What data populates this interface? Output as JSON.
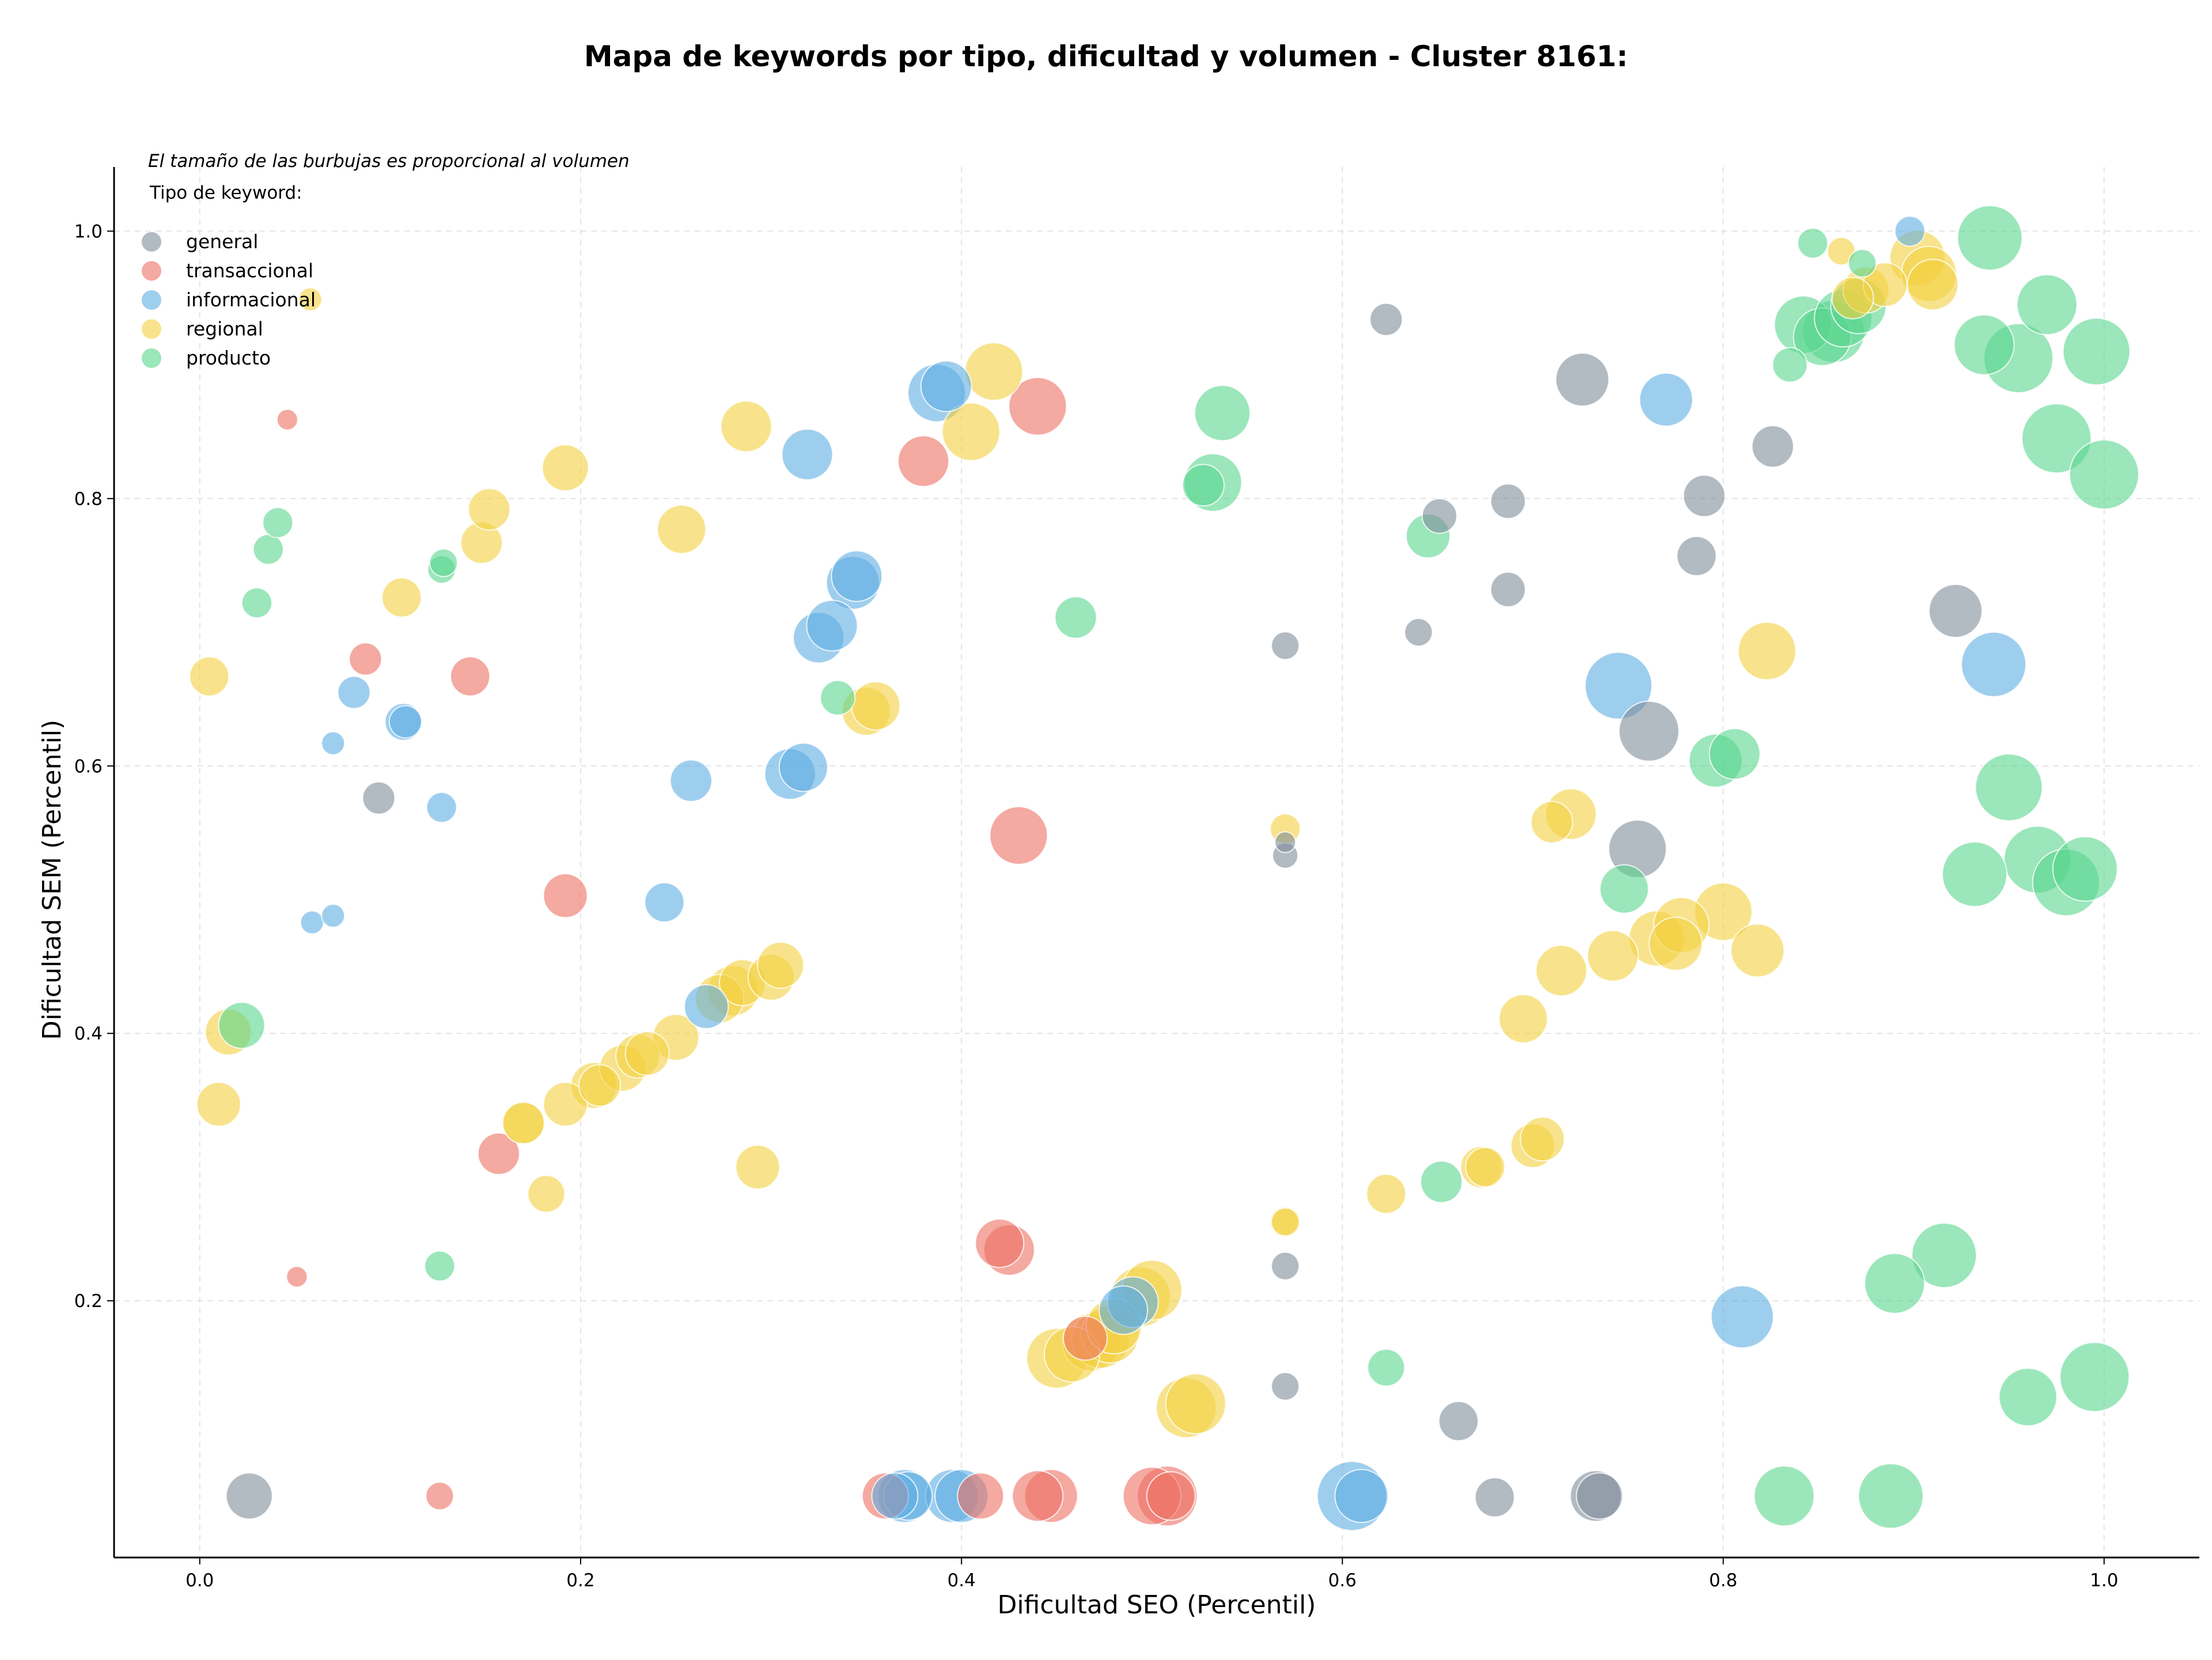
{
  "chart_data": {
    "type": "scatter",
    "title": "Mapa de keywords por tipo, dificultad y volumen - Cluster 8161:",
    "xlabel": "Dificultad SEO (Percentil)",
    "ylabel": "Dificultad SEM (Percentil)",
    "xlim": [
      -0.045,
      1.05
    ],
    "ylim": [
      0.008,
      1.048
    ],
    "xticks": [
      "0.0",
      "0.2",
      "0.4",
      "0.6",
      "0.8",
      "1.0"
    ],
    "xtick_values": [
      0.0,
      0.2,
      0.4,
      0.6,
      0.8,
      1.0
    ],
    "yticks": [
      "0.2",
      "0.4",
      "0.6",
      "0.8",
      "1.0"
    ],
    "ytick_values": [
      0.2,
      0.4,
      0.6,
      0.8,
      1.0
    ],
    "grid": true,
    "note": "El tamaño de las burbujas es proporcional al volumen",
    "legend_title": "Tipo de keyword:",
    "legend_position": "top-left",
    "series": [
      {
        "name": "general",
        "color": "#7f8c9a",
        "points": [
          [
            0.026,
            0.054,
            40
          ],
          [
            0.094,
            0.576,
            28
          ],
          [
            0.57,
            0.69,
            24
          ],
          [
            0.57,
            0.543,
            18
          ],
          [
            0.57,
            0.533,
            22
          ],
          [
            0.57,
            0.226,
            24
          ],
          [
            0.57,
            0.136,
            24
          ],
          [
            0.623,
            0.934,
            28
          ],
          [
            0.64,
            0.7,
            24
          ],
          [
            0.651,
            0.787,
            30
          ],
          [
            0.68,
            0.053,
            34
          ],
          [
            0.661,
            0.11,
            34
          ],
          [
            0.687,
            0.798,
            30
          ],
          [
            0.687,
            0.732,
            30
          ],
          [
            0.726,
            0.889,
            46
          ],
          [
            0.733,
            0.054,
            44
          ],
          [
            0.735,
            0.054,
            40
          ],
          [
            0.755,
            0.538,
            50
          ],
          [
            0.761,
            0.626,
            52
          ],
          [
            0.786,
            0.757,
            34
          ],
          [
            0.79,
            0.802,
            36
          ],
          [
            0.826,
            0.839,
            36
          ],
          [
            0.922,
            0.716,
            46
          ]
        ]
      },
      {
        "name": "transaccional",
        "color": "#ec7063",
        "points": [
          [
            0.046,
            0.859,
            18
          ],
          [
            0.051,
            0.218,
            18
          ],
          [
            0.087,
            0.68,
            28
          ],
          [
            0.126,
            0.054,
            24
          ],
          [
            0.142,
            0.667,
            34
          ],
          [
            0.157,
            0.31,
            36
          ],
          [
            0.192,
            0.503,
            38
          ],
          [
            0.36,
            0.054,
            40
          ],
          [
            0.38,
            0.828,
            44
          ],
          [
            0.41,
            0.054,
            40
          ],
          [
            0.42,
            0.243,
            42
          ],
          [
            0.425,
            0.238,
            44
          ],
          [
            0.43,
            0.548,
            50
          ],
          [
            0.44,
            0.054,
            44
          ],
          [
            0.447,
            0.054,
            46
          ],
          [
            0.44,
            0.869,
            50
          ],
          [
            0.465,
            0.172,
            38
          ],
          [
            0.5,
            0.054,
            50
          ],
          [
            0.508,
            0.054,
            52
          ],
          [
            0.51,
            0.054,
            42
          ]
        ]
      },
      {
        "name": "informacional",
        "color": "#5dade2",
        "points": [
          [
            0.059,
            0.483,
            20
          ],
          [
            0.07,
            0.488,
            20
          ],
          [
            0.07,
            0.617,
            20
          ],
          [
            0.081,
            0.655,
            28
          ],
          [
            0.107,
            0.633,
            32
          ],
          [
            0.108,
            0.633,
            28
          ],
          [
            0.127,
            0.569,
            26
          ],
          [
            0.244,
            0.498,
            34
          ],
          [
            0.258,
            0.589,
            36
          ],
          [
            0.266,
            0.42,
            38
          ],
          [
            0.31,
            0.594,
            44
          ],
          [
            0.317,
            0.599,
            42
          ],
          [
            0.319,
            0.833,
            44
          ],
          [
            0.325,
            0.696,
            44
          ],
          [
            0.332,
            0.705,
            44
          ],
          [
            0.343,
            0.737,
            46
          ],
          [
            0.345,
            0.742,
            44
          ],
          [
            0.365,
            0.054,
            40
          ],
          [
            0.37,
            0.054,
            46
          ],
          [
            0.372,
            0.054,
            42
          ],
          [
            0.387,
            0.879,
            50
          ],
          [
            0.392,
            0.884,
            44
          ],
          [
            0.395,
            0.054,
            46
          ],
          [
            0.4,
            0.054,
            46
          ],
          [
            0.485,
            0.193,
            42
          ],
          [
            0.49,
            0.199,
            44
          ],
          [
            0.605,
            0.054,
            60
          ],
          [
            0.61,
            0.054,
            46
          ],
          [
            0.77,
            0.874,
            46
          ],
          [
            0.745,
            0.66,
            58
          ],
          [
            0.81,
            0.188,
            54
          ],
          [
            0.898,
            1.0,
            26
          ],
          [
            0.942,
            0.676,
            56
          ]
        ]
      },
      {
        "name": "regional",
        "color": "#f4d03f",
        "points": [
          [
            0.005,
            0.667,
            34
          ],
          [
            0.01,
            0.347,
            38
          ],
          [
            0.015,
            0.401,
            40
          ],
          [
            0.058,
            0.949,
            20
          ],
          [
            0.106,
            0.726,
            34
          ],
          [
            0.148,
            0.767,
            36
          ],
          [
            0.152,
            0.792,
            36
          ],
          [
            0.17,
            0.333,
            36
          ],
          [
            0.17,
            0.333,
            36
          ],
          [
            0.182,
            0.28,
            32
          ],
          [
            0.192,
            0.347,
            38
          ],
          [
            0.192,
            0.823,
            40
          ],
          [
            0.207,
            0.361,
            40
          ],
          [
            0.21,
            0.361,
            36
          ],
          [
            0.222,
            0.374,
            40
          ],
          [
            0.23,
            0.383,
            38
          ],
          [
            0.235,
            0.385,
            38
          ],
          [
            0.25,
            0.397,
            40
          ],
          [
            0.253,
            0.777,
            42
          ],
          [
            0.273,
            0.426,
            42
          ],
          [
            0.28,
            0.432,
            44
          ],
          [
            0.285,
            0.438,
            40
          ],
          [
            0.287,
            0.854,
            44
          ],
          [
            0.293,
            0.3,
            38
          ],
          [
            0.3,
            0.442,
            40
          ],
          [
            0.305,
            0.451,
            40
          ],
          [
            0.35,
            0.641,
            42
          ],
          [
            0.355,
            0.645,
            42
          ],
          [
            0.405,
            0.85,
            50
          ],
          [
            0.417,
            0.895,
            50
          ],
          [
            0.45,
            0.157,
            52
          ],
          [
            0.458,
            0.16,
            48
          ],
          [
            0.468,
            0.169,
            50
          ],
          [
            0.473,
            0.171,
            50
          ],
          [
            0.478,
            0.175,
            50
          ],
          [
            0.48,
            0.181,
            48
          ],
          [
            0.494,
            0.203,
            52
          ],
          [
            0.5,
            0.208,
            52
          ],
          [
            0.518,
            0.12,
            52
          ],
          [
            0.523,
            0.123,
            52
          ],
          [
            0.57,
            0.553,
            26
          ],
          [
            0.57,
            0.259,
            26
          ],
          [
            0.57,
            0.259,
            24
          ],
          [
            0.623,
            0.28,
            34
          ],
          [
            0.673,
            0.3,
            36
          ],
          [
            0.675,
            0.3,
            34
          ],
          [
            0.695,
            0.411,
            42
          ],
          [
            0.7,
            0.316,
            38
          ],
          [
            0.705,
            0.321,
            38
          ],
          [
            0.71,
            0.558,
            36
          ],
          [
            0.715,
            0.447,
            44
          ],
          [
            0.72,
            0.564,
            44
          ],
          [
            0.742,
            0.458,
            44
          ],
          [
            0.765,
            0.471,
            48
          ],
          [
            0.775,
            0.467,
            46
          ],
          [
            0.778,
            0.481,
            48
          ],
          [
            0.8,
            0.491,
            50
          ],
          [
            0.818,
            0.462,
            46
          ],
          [
            0.823,
            0.686,
            50
          ],
          [
            0.862,
            0.985,
            24
          ],
          [
            0.868,
            0.95,
            36
          ],
          [
            0.875,
            0.956,
            40
          ],
          [
            0.885,
            0.96,
            38
          ],
          [
            0.902,
            0.98,
            48
          ],
          [
            0.908,
            0.968,
            48
          ],
          [
            0.91,
            0.96,
            44
          ]
        ]
      },
      {
        "name": "producto",
        "color": "#58d68d",
        "points": [
          [
            0.022,
            0.406,
            40
          ],
          [
            0.03,
            0.722,
            26
          ],
          [
            0.036,
            0.762,
            26
          ],
          [
            0.041,
            0.782,
            26
          ],
          [
            0.126,
            0.226,
            26
          ],
          [
            0.127,
            0.747,
            24
          ],
          [
            0.128,
            0.752,
            24
          ],
          [
            0.335,
            0.651,
            30
          ],
          [
            0.46,
            0.711,
            36
          ],
          [
            0.527,
            0.81,
            36
          ],
          [
            0.532,
            0.812,
            50
          ],
          [
            0.537,
            0.864,
            48
          ],
          [
            0.623,
            0.15,
            32
          ],
          [
            0.645,
            0.772,
            38
          ],
          [
            0.652,
            0.289,
            36
          ],
          [
            0.748,
            0.508,
            42
          ],
          [
            0.796,
            0.604,
            46
          ],
          [
            0.806,
            0.609,
            44
          ],
          [
            0.832,
            0.054,
            52
          ],
          [
            0.835,
            0.9,
            30
          ],
          [
            0.842,
            0.93,
            50
          ],
          [
            0.847,
            0.991,
            26
          ],
          [
            0.852,
            0.921,
            50
          ],
          [
            0.858,
            0.925,
            54
          ],
          [
            0.863,
            0.935,
            50
          ],
          [
            0.871,
            0.944,
            48
          ],
          [
            0.873,
            0.976,
            24
          ],
          [
            0.888,
            0.054,
            56
          ],
          [
            0.89,
            0.213,
            52
          ],
          [
            0.916,
            0.234,
            56
          ],
          [
            0.932,
            0.519,
            56
          ],
          [
            0.937,
            0.915,
            52
          ],
          [
            0.94,
            0.995,
            56
          ],
          [
            0.95,
            0.584,
            58
          ],
          [
            0.955,
            0.905,
            60
          ],
          [
            0.96,
            0.128,
            50
          ],
          [
            0.965,
            0.53,
            58
          ],
          [
            0.97,
            0.945,
            52
          ],
          [
            0.975,
            0.845,
            60
          ],
          [
            0.98,
            0.513,
            58
          ],
          [
            0.99,
            0.523,
            56
          ],
          [
            0.996,
            0.91,
            58
          ],
          [
            0.995,
            0.143,
            60
          ],
          [
            1.0,
            0.818,
            60
          ]
        ]
      }
    ]
  }
}
